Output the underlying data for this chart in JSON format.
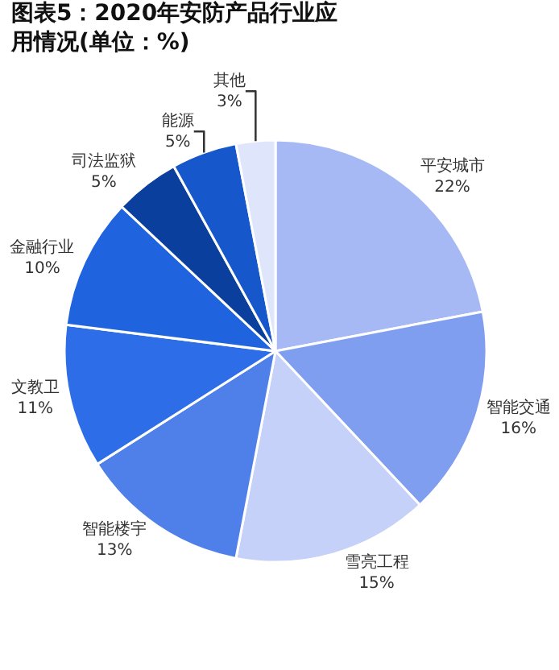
{
  "chart_data": {
    "type": "pie",
    "title": "图表5：2020年安防产品行业应用情况(单位：%)",
    "categories": [
      "平安城市",
      "智能交通",
      "雪亮工程",
      "智能楼宇",
      "文教卫",
      "金融行业",
      "司法监狱",
      "能源",
      "其他"
    ],
    "values": [
      22,
      16,
      15,
      13,
      11,
      10,
      5,
      5,
      3
    ],
    "value_labels": [
      "22%",
      "16%",
      "15%",
      "13%",
      "11%",
      "10%",
      "5%",
      "5%",
      "3%"
    ],
    "colors": [
      "#a6b9f5",
      "#7f9ef0",
      "#c5d1f8",
      "#4f7fe9",
      "#2d6ee8",
      "#1f63df",
      "#0b3f9e",
      "#1757cc",
      "#dfe6fb"
    ],
    "legend": false
  }
}
